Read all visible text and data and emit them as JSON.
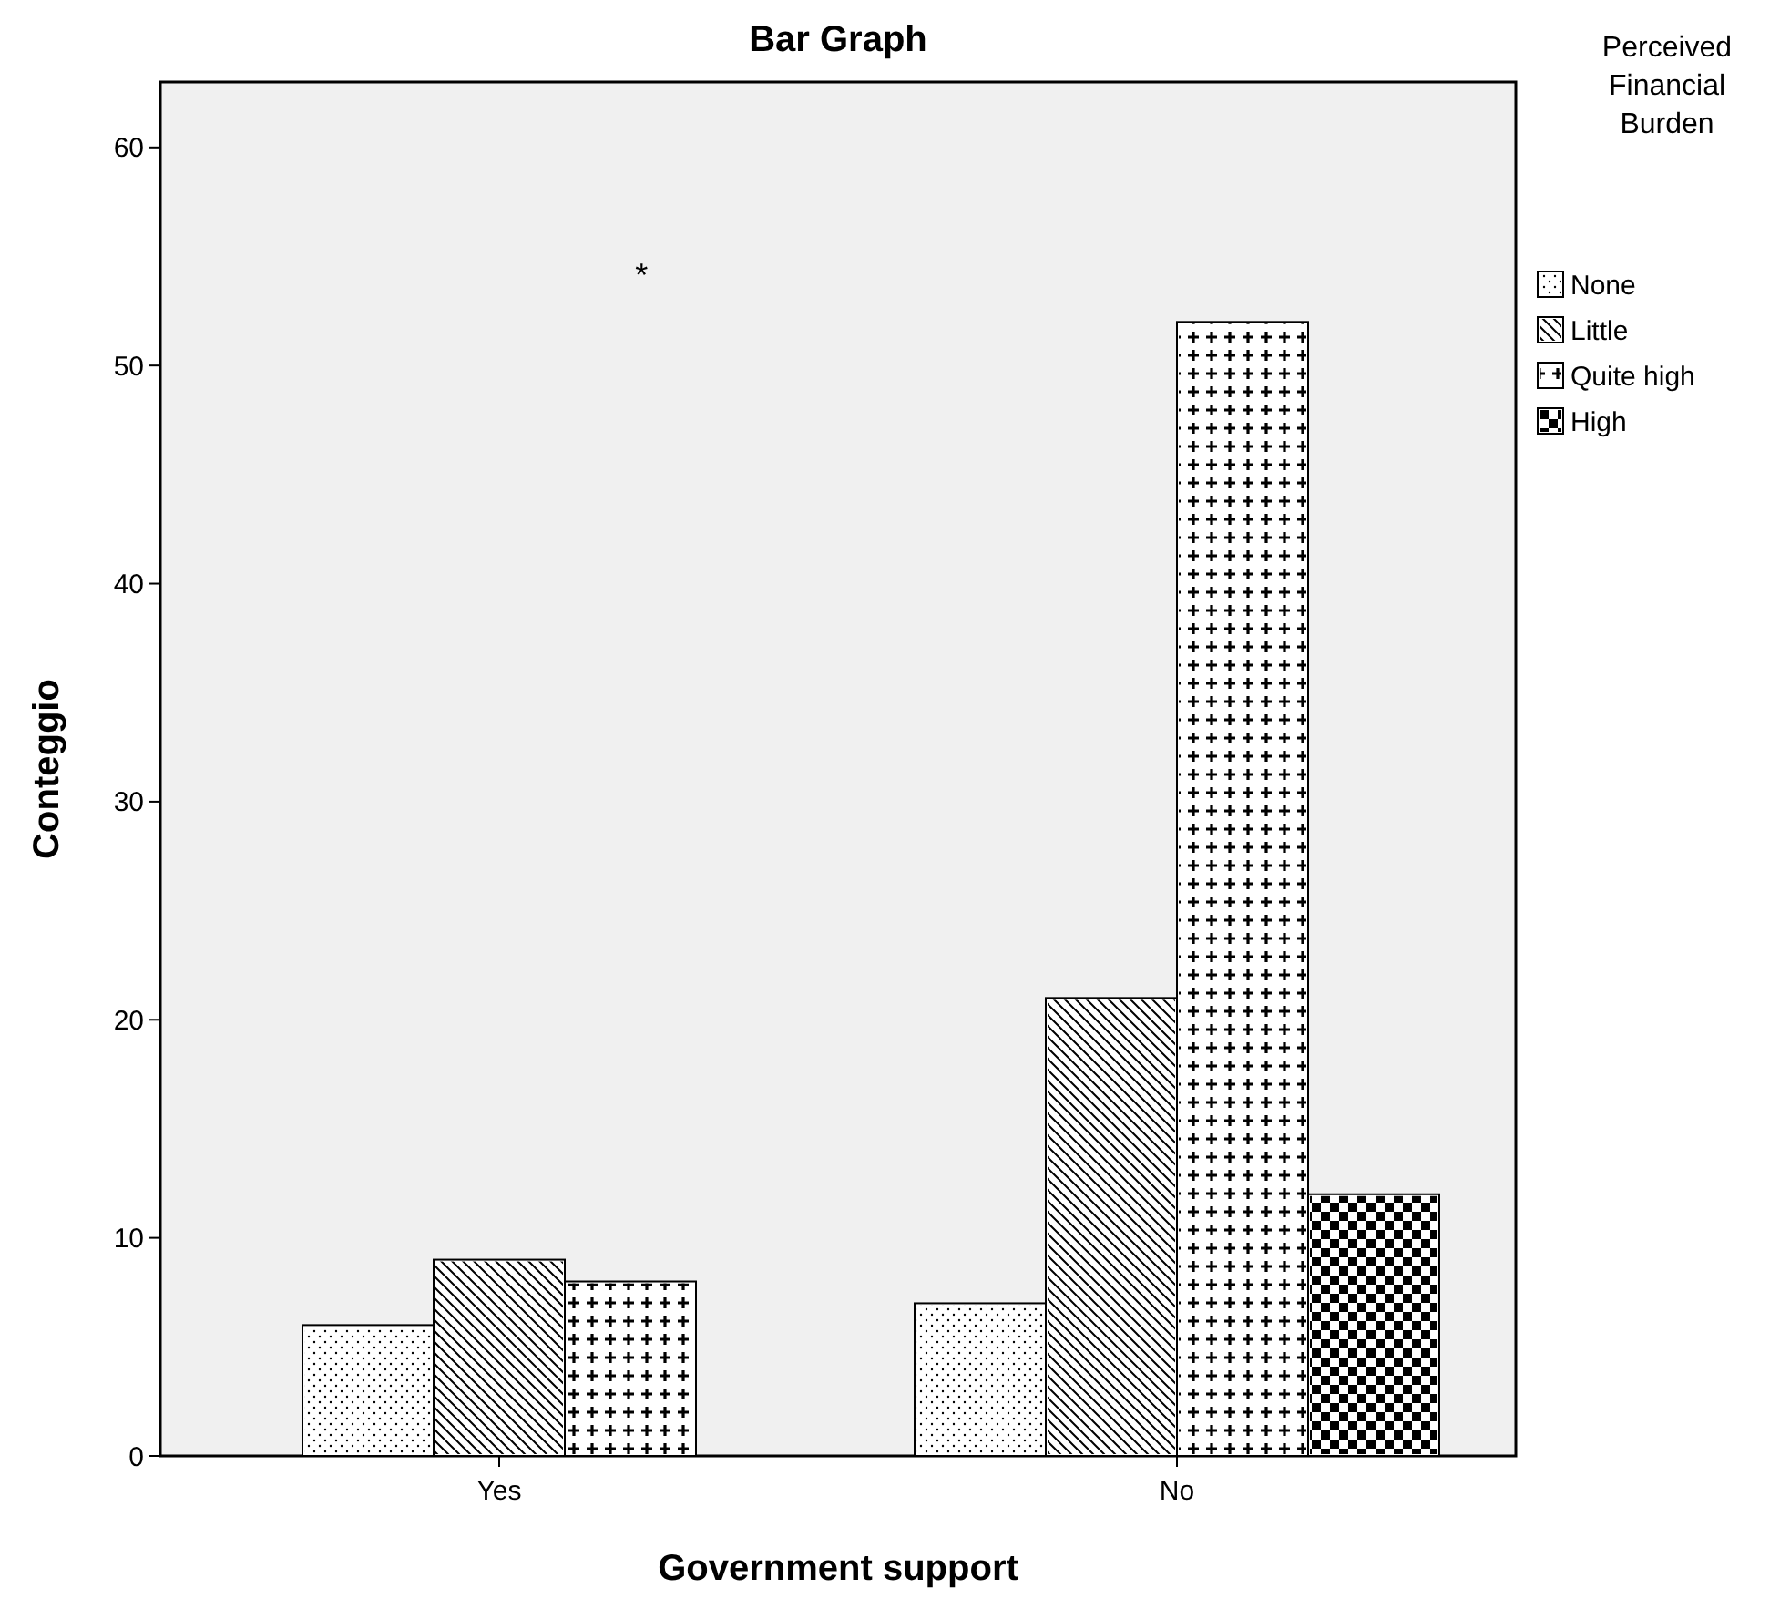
{
  "chart_data": {
    "type": "bar",
    "title": "Bar Graph",
    "xlabel": "Government support",
    "ylabel": "Conteggio",
    "legend_title": "Perceived Financial Burden",
    "categories": [
      "Yes",
      "No"
    ],
    "series": [
      {
        "name": "None",
        "color": "#ffffff",
        "values": [
          6,
          7
        ]
      },
      {
        "name": "Little",
        "color": "#ffffff",
        "values": [
          9,
          21
        ]
      },
      {
        "name": "Quite high",
        "color": "#ffffff",
        "values": [
          8,
          52
        ]
      },
      {
        "name": "High",
        "color": "#ffffff",
        "values": [
          null,
          12
        ]
      }
    ],
    "ylim": [
      0,
      63
    ],
    "yticks": [
      0,
      10,
      20,
      30,
      40,
      50,
      60
    ],
    "grid": false,
    "legend": "top right",
    "annotations": [
      "*"
    ]
  }
}
